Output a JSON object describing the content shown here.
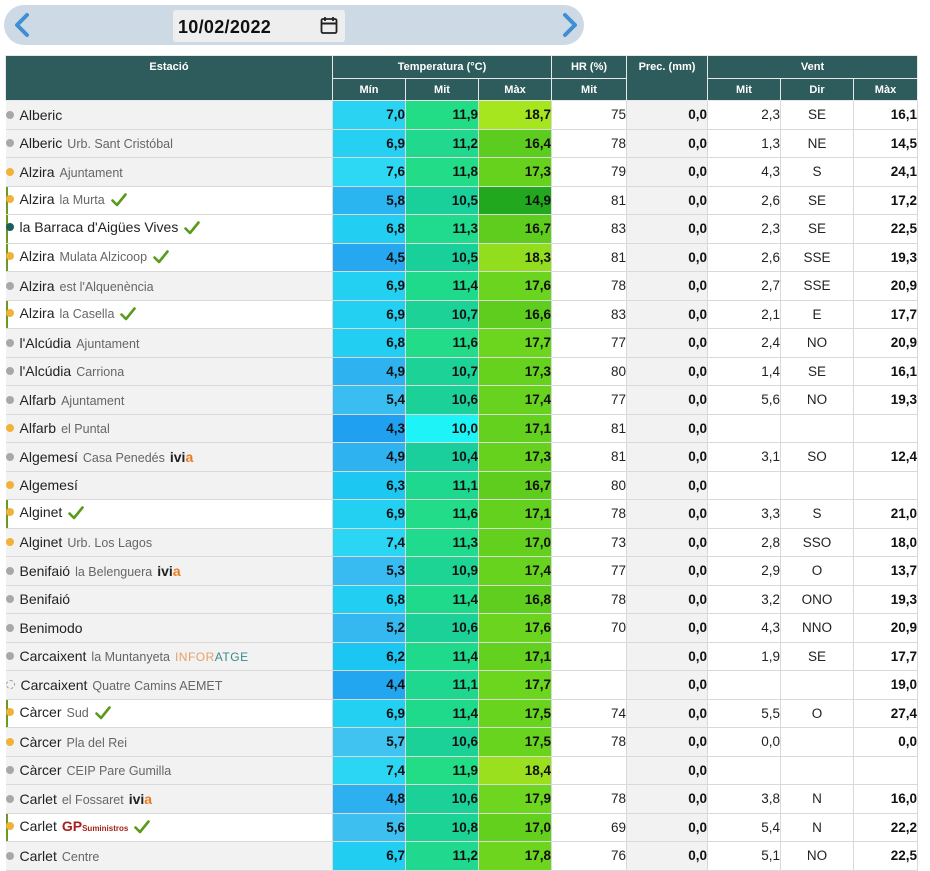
{
  "date": "10/02/2022",
  "icons": {
    "prev": "chevron-left-icon",
    "next": "chevron-right-icon",
    "calendar": "calendar-icon",
    "check": "check-icon"
  },
  "colors": {
    "header_bg": "#2e5b5b",
    "min_scale": {
      "4.3": "#1fa0f0",
      "4.4": "#22a6f0",
      "4.5": "#26aaf0",
      "4.8": "#2db0f0",
      "4.9": "#2fb2f0",
      "5.2": "#35b8f0",
      "5.3": "#38bbf0",
      "5.4": "#3abdf0",
      "5.6": "#3dc0f0",
      "5.7": "#40c3f0",
      "5.8": "#43c6f0",
      "6.2": "#1cc6f2",
      "6.3": "#1cc8f2",
      "6.7": "#22cdf2",
      "6.8": "#22cef2",
      "6.9": "#24d0f2",
      "7.0": "#26d2f2",
      "7.4": "#2ad6f3",
      "7.6": "#2cd8f3"
    }
  },
  "header": {
    "station": "Estació",
    "temperature": "Temperatura (°C)",
    "humidity": "HR (%)",
    "precip": "Prec. (mm)",
    "wind": "Vent",
    "t_min": "Mín",
    "t_avg": "Mit",
    "t_max": "Màx",
    "hr_avg": "Mit",
    "w_avg": "Mit",
    "w_dir": "Dir",
    "w_max": "Màx"
  },
  "rows": [
    {
      "city": "Alberic",
      "loc": "",
      "dot": "grey",
      "checked": false,
      "logo": "",
      "min": "7,0",
      "avg": "11,9",
      "max": "18,7",
      "hr": "75",
      "prec": "0,0",
      "wavg": "2,3",
      "wdir": "SE",
      "wmax": "16,1",
      "minc": "#2ad3f2",
      "avgc": "#22dc86",
      "maxc": "#a6e61e"
    },
    {
      "city": "Alberic",
      "loc": "Urb. Sant Cristóbal",
      "dot": "grey",
      "checked": false,
      "logo": "",
      "min": "6,9",
      "avg": "11,2",
      "max": "16,4",
      "hr": "78",
      "prec": "0,0",
      "wavg": "1,3",
      "wdir": "NE",
      "wmax": "14,5",
      "minc": "#26d0f2",
      "avgc": "#20d98e",
      "maxc": "#5ccc1e"
    },
    {
      "city": "Alzira",
      "loc": "Ajuntament",
      "dot": "orange",
      "checked": false,
      "logo": "",
      "min": "7,6",
      "avg": "11,8",
      "max": "17,3",
      "hr": "79",
      "prec": "0,0",
      "wavg": "4,3",
      "wdir": "S",
      "wmax": "24,1",
      "minc": "#2cd8f3",
      "avgc": "#22dc88",
      "maxc": "#66d21e"
    },
    {
      "city": "Alzira",
      "loc": "la Murta",
      "dot": "orange",
      "checked": true,
      "logo": "",
      "min": "5,8",
      "avg": "10,5",
      "max": "14,9",
      "hr": "81",
      "prec": "0,0",
      "wavg": "2,6",
      "wdir": "SE",
      "wmax": "17,2",
      "minc": "#2ab4f0",
      "avgc": "#1ad09a",
      "maxc": "#22a81e"
    },
    {
      "city": "la Barraca d'Aigües Vives",
      "loc": "",
      "dot": "teal",
      "checked": true,
      "logo": "",
      "min": "6,8",
      "avg": "11,3",
      "max": "16,7",
      "hr": "83",
      "prec": "0,0",
      "wavg": "2,3",
      "wdir": "SE",
      "wmax": "22,5",
      "minc": "#22cef2",
      "avgc": "#20da8e",
      "maxc": "#5fcd1e"
    },
    {
      "city": "Alzira",
      "loc": "Mulata Alzicoop",
      "dot": "orange",
      "checked": true,
      "logo": "",
      "min": "4,5",
      "avg": "10,5",
      "max": "18,3",
      "hr": "81",
      "prec": "0,0",
      "wavg": "2,6",
      "wdir": "SSE",
      "wmax": "19,3",
      "minc": "#26a8f0",
      "avgc": "#1ad09a",
      "maxc": "#92de1e"
    },
    {
      "city": "Alzira",
      "loc": "est l'Alquenència",
      "dot": "grey",
      "checked": false,
      "logo": "",
      "min": "6,9",
      "avg": "11,4",
      "max": "17,6",
      "hr": "78",
      "prec": "0,0",
      "wavg": "2,7",
      "wdir": "SSE",
      "wmax": "20,9",
      "minc": "#24d0f2",
      "avgc": "#20da8c",
      "maxc": "#6ad41e"
    },
    {
      "city": "Alzira",
      "loc": "la Casella",
      "dot": "orange",
      "checked": true,
      "logo": "",
      "min": "6,9",
      "avg": "10,7",
      "max": "16,6",
      "hr": "83",
      "prec": "0,0",
      "wavg": "2,1",
      "wdir": "E",
      "wmax": "17,7",
      "minc": "#24d0f2",
      "avgc": "#1cd296",
      "maxc": "#5ecd1e"
    },
    {
      "city": "l'Alcúdia",
      "loc": "Ajuntament",
      "dot": "grey",
      "checked": false,
      "logo": "",
      "min": "6,8",
      "avg": "11,6",
      "max": "17,7",
      "hr": "77",
      "prec": "0,0",
      "wavg": "2,4",
      "wdir": "NO",
      "wmax": "20,9",
      "minc": "#22cef2",
      "avgc": "#22dc8a",
      "maxc": "#6cd51e"
    },
    {
      "city": "l'Alcúdia",
      "loc": "Carriona",
      "dot": "grey",
      "checked": false,
      "logo": "",
      "min": "4,9",
      "avg": "10,7",
      "max": "17,3",
      "hr": "80",
      "prec": "0,0",
      "wavg": "1,4",
      "wdir": "SE",
      "wmax": "16,1",
      "minc": "#2fb2f0",
      "avgc": "#1cd296",
      "maxc": "#66d21e"
    },
    {
      "city": "Alfarb",
      "loc": "Ajuntament",
      "dot": "grey",
      "checked": false,
      "logo": "",
      "min": "5,4",
      "avg": "10,6",
      "max": "17,4",
      "hr": "77",
      "prec": "0,0",
      "wavg": "5,6",
      "wdir": "NO",
      "wmax": "19,3",
      "minc": "#3abdf0",
      "avgc": "#1bd198",
      "maxc": "#68d31e"
    },
    {
      "city": "Alfarb",
      "loc": "el Puntal",
      "dot": "orange",
      "checked": false,
      "logo": "",
      "min": "4,3",
      "avg": "10,0",
      "max": "17,1",
      "hr": "81",
      "prec": "0,0",
      "wavg": "",
      "wdir": "",
      "wmax": "",
      "minc": "#1fa0f0",
      "avgc": "#1ef4f8",
      "maxc": "#64d11e"
    },
    {
      "city": "Algemesí",
      "loc": "Casa Penedés",
      "dot": "grey",
      "checked": false,
      "logo": "ivia",
      "min": "4,9",
      "avg": "10,4",
      "max": "17,3",
      "hr": "81",
      "prec": "0,0",
      "wavg": "3,1",
      "wdir": "SO",
      "wmax": "12,4",
      "minc": "#2fb2f0",
      "avgc": "#1acf9c",
      "maxc": "#66d21e"
    },
    {
      "city": "Algemesí",
      "loc": "",
      "dot": "orange",
      "checked": false,
      "logo": "",
      "min": "6,3",
      "avg": "11,1",
      "max": "16,7",
      "hr": "80",
      "prec": "0,0",
      "wavg": "",
      "wdir": "",
      "wmax": "",
      "minc": "#1cc8f2",
      "avgc": "#1ed890",
      "maxc": "#5fcd1e"
    },
    {
      "city": "Alginet",
      "loc": "",
      "dot": "orange",
      "checked": true,
      "logo": "",
      "min": "6,9",
      "avg": "11,6",
      "max": "17,1",
      "hr": "78",
      "prec": "0,0",
      "wavg": "3,3",
      "wdir": "S",
      "wmax": "21,0",
      "minc": "#24d0f2",
      "avgc": "#22dc8a",
      "maxc": "#64d11e"
    },
    {
      "city": "Alginet",
      "loc": "Urb. Los Lagos",
      "dot": "orange",
      "checked": false,
      "logo": "",
      "min": "7,4",
      "avg": "11,3",
      "max": "17,0",
      "hr": "73",
      "prec": "0,0",
      "wavg": "2,8",
      "wdir": "SSO",
      "wmax": "18,0",
      "minc": "#2ad6f3",
      "avgc": "#20da8e",
      "maxc": "#63d01e"
    },
    {
      "city": "Benifaió",
      "loc": "la Belenguera",
      "dot": "grey",
      "checked": false,
      "logo": "ivia",
      "min": "5,3",
      "avg": "10,9",
      "max": "17,4",
      "hr": "77",
      "prec": "0,0",
      "wavg": "2,9",
      "wdir": "O",
      "wmax": "13,7",
      "minc": "#38bbf0",
      "avgc": "#1dd494",
      "maxc": "#68d31e"
    },
    {
      "city": "Benifaió",
      "loc": "",
      "dot": "grey",
      "checked": false,
      "logo": "",
      "min": "6,8",
      "avg": "11,4",
      "max": "16,8",
      "hr": "78",
      "prec": "0,0",
      "wavg": "3,2",
      "wdir": "ONO",
      "wmax": "19,3",
      "minc": "#22cef2",
      "avgc": "#20da8c",
      "maxc": "#60ce1e"
    },
    {
      "city": "Benimodo",
      "loc": "",
      "dot": "grey",
      "checked": false,
      "logo": "",
      "min": "5,2",
      "avg": "10,6",
      "max": "17,6",
      "hr": "70",
      "prec": "0,0",
      "wavg": "4,3",
      "wdir": "NNO",
      "wmax": "20,9",
      "minc": "#35b8f0",
      "avgc": "#1bd198",
      "maxc": "#6ad41e"
    },
    {
      "city": "Carcaixent",
      "loc": "la Muntanyeta",
      "dot": "grey",
      "checked": false,
      "logo": "infor",
      "min": "6,2",
      "avg": "11,4",
      "max": "17,1",
      "hr": "",
      "prec": "0,0",
      "wavg": "1,9",
      "wdir": "SE",
      "wmax": "17,7",
      "minc": "#1cc6f2",
      "avgc": "#20da8c",
      "maxc": "#64d11e"
    },
    {
      "city": "Carcaixent",
      "loc": "Quatre Camins AEMET",
      "dot": "hollow",
      "checked": false,
      "logo": "",
      "min": "4,4",
      "avg": "11,1",
      "max": "17,7",
      "hr": "",
      "prec": "0,0",
      "wavg": "",
      "wdir": "",
      "wmax": "19,0",
      "minc": "#22a6f0",
      "avgc": "#1ed890",
      "maxc": "#6cd51e"
    },
    {
      "city": "Càrcer",
      "loc": "Sud",
      "dot": "orange",
      "checked": true,
      "logo": "",
      "min": "6,9",
      "avg": "11,4",
      "max": "17,5",
      "hr": "74",
      "prec": "0,0",
      "wavg": "5,5",
      "wdir": "O",
      "wmax": "27,4",
      "minc": "#24d0f2",
      "avgc": "#20da8c",
      "maxc": "#69d41e"
    },
    {
      "city": "Càrcer",
      "loc": "Pla del Rei",
      "dot": "orange",
      "checked": false,
      "logo": "",
      "min": "5,7",
      "avg": "10,6",
      "max": "17,5",
      "hr": "78",
      "prec": "0,0",
      "wavg": "0,0",
      "wdir": "",
      "wmax": "0,0",
      "minc": "#40c3f0",
      "avgc": "#1bd198",
      "maxc": "#69d41e"
    },
    {
      "city": "Càrcer",
      "loc": "CEIP Pare Gumilla",
      "dot": "grey",
      "checked": false,
      "logo": "",
      "min": "7,4",
      "avg": "11,9",
      "max": "18,4",
      "hr": "",
      "prec": "0,0",
      "wavg": "",
      "wdir": "",
      "wmax": "",
      "minc": "#2ad6f3",
      "avgc": "#22dc86",
      "maxc": "#9ae01e"
    },
    {
      "city": "Carlet",
      "loc": "el Fossaret",
      "dot": "grey",
      "checked": false,
      "logo": "ivia",
      "min": "4,8",
      "avg": "10,6",
      "max": "17,9",
      "hr": "78",
      "prec": "0,0",
      "wavg": "3,8",
      "wdir": "N",
      "wmax": "16,0",
      "minc": "#2db0f0",
      "avgc": "#1bd198",
      "maxc": "#6ed61e"
    },
    {
      "city": "Carlet",
      "loc": "",
      "dot": "orange",
      "checked": true,
      "logo": "gp",
      "min": "5,6",
      "avg": "10,8",
      "max": "17,0",
      "hr": "69",
      "prec": "0,0",
      "wavg": "5,4",
      "wdir": "N",
      "wmax": "22,2",
      "minc": "#3dc0f0",
      "avgc": "#1cd396",
      "maxc": "#63d01e"
    },
    {
      "city": "Carlet",
      "loc": "Centre",
      "dot": "grey",
      "checked": false,
      "logo": "",
      "min": "6,7",
      "avg": "11,2",
      "max": "17,8",
      "hr": "76",
      "prec": "0,0",
      "wavg": "5,1",
      "wdir": "NO",
      "wmax": "22,5",
      "minc": "#22cdf2",
      "avgc": "#20d98e",
      "maxc": "#6dd51e"
    }
  ],
  "logos": {
    "ivia_main": "ivi",
    "ivia_accent": "a",
    "infor_a": "INFOR",
    "infor_b": "ATGE",
    "gp_main": "GP",
    "gp_small": "Suministros"
  }
}
